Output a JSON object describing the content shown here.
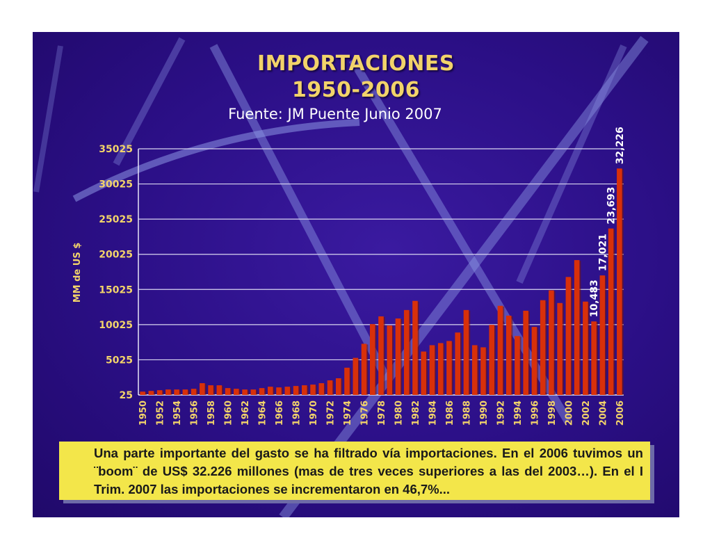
{
  "title_line1": "IMPORTACIONES",
  "title_line2": "1950-2006",
  "source": "Fuente: JM Puente Junio 2007",
  "caption": "Una parte importante del gasto se ha filtrado vía importaciones. En el 2006 tuvimos un ¨boom¨ de US$ 32.226 millones (mas de tres veces superiores a las del 2003…). En el I Trim. 2007 las importaciones se incrementaron en 46,7%...",
  "colors": {
    "bar": "#d8300a",
    "axis_text": "#f2d36a",
    "title": "#f2d36a",
    "caption_bg": "#f3e64a",
    "background": "#2b0f86"
  },
  "chart_data": {
    "type": "bar",
    "title": "IMPORTACIONES 1950-2006",
    "subtitle": "Fuente: JM Puente Junio 2007",
    "ylabel": "MM de US $",
    "xlabel": "",
    "ylim": [
      25,
      35025
    ],
    "yticks": [
      "25",
      "5025",
      "10025",
      "15025",
      "20025",
      "25025",
      "30025",
      "35025"
    ],
    "ytick_values": [
      25,
      5025,
      10025,
      15025,
      20025,
      25025,
      30025,
      35025
    ],
    "grid": true,
    "x_tick_labels": [
      "1950",
      "1952",
      "1954",
      "1956",
      "1958",
      "1960",
      "1962",
      "1964",
      "1966",
      "1968",
      "1970",
      "1972",
      "1974",
      "1976",
      "1978",
      "1980",
      "1982",
      "1984",
      "1986",
      "1988",
      "1990",
      "1992",
      "1994",
      "1996",
      "1998",
      "2000",
      "2002",
      "2004",
      "2006"
    ],
    "categories": [
      "1950",
      "1951",
      "1952",
      "1953",
      "1954",
      "1955",
      "1956",
      "1957",
      "1958",
      "1959",
      "1960",
      "1961",
      "1962",
      "1963",
      "1964",
      "1965",
      "1966",
      "1967",
      "1968",
      "1969",
      "1970",
      "1971",
      "1972",
      "1973",
      "1974",
      "1975",
      "1976",
      "1977",
      "1978",
      "1979",
      "1980",
      "1981",
      "1982",
      "1983",
      "1984",
      "1985",
      "1986",
      "1987",
      "1988",
      "1989",
      "1990",
      "1991",
      "1992",
      "1993",
      "1994",
      "1995",
      "1996",
      "1997",
      "1998",
      "1999",
      "2000",
      "2001",
      "2002",
      "2003",
      "2004",
      "2005",
      "2006"
    ],
    "values": [
      500,
      600,
      700,
      800,
      800,
      800,
      900,
      1700,
      1400,
      1400,
      1000,
      900,
      800,
      800,
      1000,
      1200,
      1100,
      1200,
      1300,
      1400,
      1500,
      1700,
      2100,
      2400,
      3900,
      5300,
      7300,
      10100,
      11200,
      9900,
      10900,
      12100,
      13400,
      6200,
      7100,
      7400,
      7700,
      8900,
      12100,
      7100,
      6800,
      10000,
      12700,
      11300,
      8400,
      12000,
      9700,
      13500,
      14900,
      13100,
      16800,
      19200,
      13300,
      10483,
      17021,
      23693,
      32226
    ],
    "data_labels": [
      {
        "category": "2003",
        "text": "10,483"
      },
      {
        "category": "2004",
        "text": "17,021"
      },
      {
        "category": "2005",
        "text": "23,693"
      },
      {
        "category": "2006",
        "text": "32,226"
      }
    ]
  }
}
